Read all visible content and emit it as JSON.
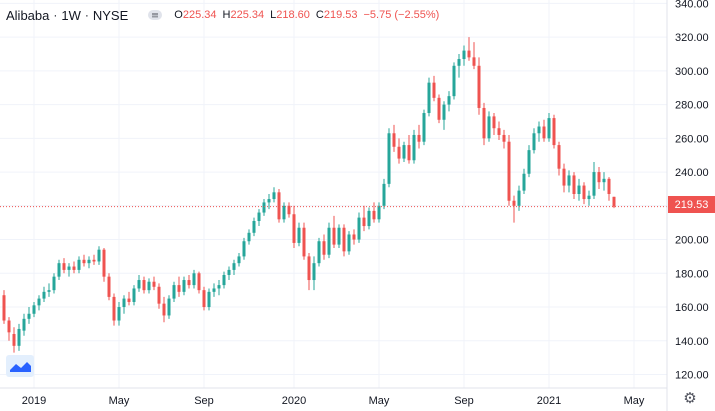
{
  "legend": {
    "symbol": "Alibaba",
    "interval": "1W",
    "exchange": "NYSE",
    "open_label": "O",
    "open": "225.34",
    "high_label": "H",
    "high": "225.34",
    "low_label": "L",
    "low": "218.60",
    "close_label": "C",
    "close": "219.53",
    "change": "−5.75 (−2.55%)"
  },
  "last_price_label": "219.53",
  "colors": {
    "up": "#26a69a",
    "down": "#ef5350",
    "grid": "#f0f3fa",
    "axis_text": "#131722"
  },
  "chart_data": {
    "type": "candlestick",
    "ylim": [
      112,
      342
    ],
    "y_ticks": [
      "120.00",
      "140.00",
      "160.00",
      "180.00",
      "200.00",
      "220.00",
      "240.00",
      "260.00",
      "280.00",
      "300.00",
      "320.00",
      "340.00"
    ],
    "x_ticks": [
      "2019",
      "May",
      "Sep",
      "2020",
      "May",
      "Sep",
      "2021",
      "May"
    ],
    "last_price": 219.53,
    "weeks": [
      {
        "o": 167,
        "h": 170,
        "l": 150,
        "c": 152
      },
      {
        "o": 152,
        "h": 154,
        "l": 140,
        "c": 145
      },
      {
        "o": 144,
        "h": 148,
        "l": 133,
        "c": 137
      },
      {
        "o": 137,
        "h": 150,
        "l": 134,
        "c": 147
      },
      {
        "o": 146,
        "h": 156,
        "l": 143,
        "c": 153
      },
      {
        "o": 153,
        "h": 160,
        "l": 150,
        "c": 156
      },
      {
        "o": 156,
        "h": 163,
        "l": 154,
        "c": 161
      },
      {
        "o": 161,
        "h": 167,
        "l": 158,
        "c": 165
      },
      {
        "o": 165,
        "h": 172,
        "l": 163,
        "c": 169
      },
      {
        "o": 169,
        "h": 174,
        "l": 166,
        "c": 170
      },
      {
        "o": 170,
        "h": 180,
        "l": 168,
        "c": 178
      },
      {
        "o": 178,
        "h": 188,
        "l": 176,
        "c": 186
      },
      {
        "o": 186,
        "h": 189,
        "l": 180,
        "c": 182
      },
      {
        "o": 182,
        "h": 186,
        "l": 178,
        "c": 184
      },
      {
        "o": 184,
        "h": 187,
        "l": 180,
        "c": 182
      },
      {
        "o": 182,
        "h": 190,
        "l": 180,
        "c": 188
      },
      {
        "o": 188,
        "h": 191,
        "l": 184,
        "c": 186
      },
      {
        "o": 186,
        "h": 190,
        "l": 183,
        "c": 188
      },
      {
        "o": 188,
        "h": 191,
        "l": 185,
        "c": 187
      },
      {
        "o": 187,
        "h": 196,
        "l": 185,
        "c": 194
      },
      {
        "o": 194,
        "h": 195,
        "l": 175,
        "c": 178
      },
      {
        "o": 178,
        "h": 180,
        "l": 164,
        "c": 166
      },
      {
        "o": 166,
        "h": 168,
        "l": 149,
        "c": 152
      },
      {
        "o": 152,
        "h": 163,
        "l": 149,
        "c": 160
      },
      {
        "o": 160,
        "h": 167,
        "l": 156,
        "c": 165
      },
      {
        "o": 165,
        "h": 169,
        "l": 161,
        "c": 163
      },
      {
        "o": 163,
        "h": 173,
        "l": 161,
        "c": 171
      },
      {
        "o": 171,
        "h": 179,
        "l": 169,
        "c": 176
      },
      {
        "o": 176,
        "h": 178,
        "l": 168,
        "c": 170
      },
      {
        "o": 170,
        "h": 177,
        "l": 168,
        "c": 175
      },
      {
        "o": 175,
        "h": 178,
        "l": 170,
        "c": 172
      },
      {
        "o": 172,
        "h": 174,
        "l": 159,
        "c": 162
      },
      {
        "o": 162,
        "h": 166,
        "l": 151,
        "c": 155
      },
      {
        "o": 155,
        "h": 167,
        "l": 153,
        "c": 165
      },
      {
        "o": 165,
        "h": 175,
        "l": 163,
        "c": 173
      },
      {
        "o": 173,
        "h": 178,
        "l": 166,
        "c": 169
      },
      {
        "o": 169,
        "h": 178,
        "l": 167,
        "c": 176
      },
      {
        "o": 176,
        "h": 179,
        "l": 171,
        "c": 173
      },
      {
        "o": 173,
        "h": 182,
        "l": 171,
        "c": 180
      },
      {
        "o": 180,
        "h": 181,
        "l": 168,
        "c": 170
      },
      {
        "o": 170,
        "h": 172,
        "l": 158,
        "c": 160
      },
      {
        "o": 160,
        "h": 171,
        "l": 158,
        "c": 169
      },
      {
        "o": 169,
        "h": 174,
        "l": 166,
        "c": 171
      },
      {
        "o": 171,
        "h": 176,
        "l": 167,
        "c": 173
      },
      {
        "o": 173,
        "h": 181,
        "l": 171,
        "c": 179
      },
      {
        "o": 179,
        "h": 184,
        "l": 176,
        "c": 182
      },
      {
        "o": 182,
        "h": 188,
        "l": 179,
        "c": 186
      },
      {
        "o": 186,
        "h": 192,
        "l": 184,
        "c": 190
      },
      {
        "o": 190,
        "h": 201,
        "l": 188,
        "c": 199
      },
      {
        "o": 199,
        "h": 206,
        "l": 197,
        "c": 204
      },
      {
        "o": 204,
        "h": 213,
        "l": 202,
        "c": 211
      },
      {
        "o": 211,
        "h": 218,
        "l": 208,
        "c": 216
      },
      {
        "o": 216,
        "h": 224,
        "l": 214,
        "c": 222
      },
      {
        "o": 222,
        "h": 227,
        "l": 218,
        "c": 224
      },
      {
        "o": 224,
        "h": 231,
        "l": 222,
        "c": 228
      },
      {
        "o": 228,
        "h": 230,
        "l": 210,
        "c": 212
      },
      {
        "o": 212,
        "h": 222,
        "l": 210,
        "c": 220
      },
      {
        "o": 220,
        "h": 222,
        "l": 213,
        "c": 215
      },
      {
        "o": 215,
        "h": 220,
        "l": 195,
        "c": 198
      },
      {
        "o": 198,
        "h": 210,
        "l": 196,
        "c": 207
      },
      {
        "o": 207,
        "h": 210,
        "l": 188,
        "c": 190
      },
      {
        "o": 190,
        "h": 192,
        "l": 170,
        "c": 176
      },
      {
        "o": 176,
        "h": 190,
        "l": 170,
        "c": 186
      },
      {
        "o": 186,
        "h": 201,
        "l": 184,
        "c": 199
      },
      {
        "o": 199,
        "h": 203,
        "l": 188,
        "c": 191
      },
      {
        "o": 191,
        "h": 210,
        "l": 189,
        "c": 207
      },
      {
        "o": 207,
        "h": 214,
        "l": 195,
        "c": 197
      },
      {
        "o": 197,
        "h": 209,
        "l": 195,
        "c": 207
      },
      {
        "o": 207,
        "h": 209,
        "l": 190,
        "c": 193
      },
      {
        "o": 193,
        "h": 205,
        "l": 191,
        "c": 203
      },
      {
        "o": 203,
        "h": 206,
        "l": 197,
        "c": 200
      },
      {
        "o": 200,
        "h": 216,
        "l": 198,
        "c": 213
      },
      {
        "o": 213,
        "h": 220,
        "l": 205,
        "c": 208
      },
      {
        "o": 208,
        "h": 219,
        "l": 206,
        "c": 217
      },
      {
        "o": 217,
        "h": 222,
        "l": 210,
        "c": 212
      },
      {
        "o": 212,
        "h": 222,
        "l": 210,
        "c": 220
      },
      {
        "o": 220,
        "h": 236,
        "l": 218,
        "c": 233
      },
      {
        "o": 233,
        "h": 266,
        "l": 231,
        "c": 263
      },
      {
        "o": 263,
        "h": 268,
        "l": 252,
        "c": 255
      },
      {
        "o": 255,
        "h": 260,
        "l": 245,
        "c": 248
      },
      {
        "o": 248,
        "h": 258,
        "l": 246,
        "c": 256
      },
      {
        "o": 256,
        "h": 262,
        "l": 245,
        "c": 247
      },
      {
        "o": 247,
        "h": 265,
        "l": 245,
        "c": 262
      },
      {
        "o": 262,
        "h": 268,
        "l": 254,
        "c": 258
      },
      {
        "o": 258,
        "h": 277,
        "l": 256,
        "c": 275
      },
      {
        "o": 275,
        "h": 296,
        "l": 273,
        "c": 293
      },
      {
        "o": 293,
        "h": 297,
        "l": 282,
        "c": 284
      },
      {
        "o": 284,
        "h": 286,
        "l": 269,
        "c": 271
      },
      {
        "o": 271,
        "h": 282,
        "l": 265,
        "c": 280
      },
      {
        "o": 280,
        "h": 288,
        "l": 276,
        "c": 285
      },
      {
        "o": 285,
        "h": 305,
        "l": 283,
        "c": 303
      },
      {
        "o": 303,
        "h": 310,
        "l": 296,
        "c": 307
      },
      {
        "o": 307,
        "h": 315,
        "l": 303,
        "c": 312
      },
      {
        "o": 312,
        "h": 320,
        "l": 306,
        "c": 308
      },
      {
        "o": 308,
        "h": 317,
        "l": 301,
        "c": 303
      },
      {
        "o": 303,
        "h": 308,
        "l": 274,
        "c": 278
      },
      {
        "o": 278,
        "h": 281,
        "l": 256,
        "c": 260
      },
      {
        "o": 260,
        "h": 276,
        "l": 258,
        "c": 273
      },
      {
        "o": 273,
        "h": 275,
        "l": 262,
        "c": 266
      },
      {
        "o": 266,
        "h": 270,
        "l": 259,
        "c": 262
      },
      {
        "o": 262,
        "h": 265,
        "l": 254,
        "c": 258
      },
      {
        "o": 258,
        "h": 262,
        "l": 220,
        "c": 223
      },
      {
        "o": 223,
        "h": 226,
        "l": 210,
        "c": 220
      },
      {
        "o": 220,
        "h": 232,
        "l": 217,
        "c": 229
      },
      {
        "o": 229,
        "h": 242,
        "l": 227,
        "c": 239
      },
      {
        "o": 239,
        "h": 256,
        "l": 237,
        "c": 253
      },
      {
        "o": 253,
        "h": 266,
        "l": 251,
        "c": 263
      },
      {
        "o": 263,
        "h": 270,
        "l": 258,
        "c": 267
      },
      {
        "o": 267,
        "h": 271,
        "l": 258,
        "c": 260
      },
      {
        "o": 260,
        "h": 275,
        "l": 258,
        "c": 272
      },
      {
        "o": 272,
        "h": 274,
        "l": 254,
        "c": 256
      },
      {
        "o": 256,
        "h": 258,
        "l": 238,
        "c": 242
      },
      {
        "o": 242,
        "h": 245,
        "l": 228,
        "c": 232
      },
      {
        "o": 232,
        "h": 241,
        "l": 228,
        "c": 238
      },
      {
        "o": 238,
        "h": 240,
        "l": 224,
        "c": 227
      },
      {
        "o": 227,
        "h": 236,
        "l": 223,
        "c": 232
      },
      {
        "o": 232,
        "h": 234,
        "l": 221,
        "c": 224
      },
      {
        "o": 224,
        "h": 229,
        "l": 220,
        "c": 226
      },
      {
        "o": 226,
        "h": 246,
        "l": 224,
        "c": 240
      },
      {
        "o": 240,
        "h": 243,
        "l": 230,
        "c": 234
      },
      {
        "o": 234,
        "h": 240,
        "l": 229,
        "c": 236
      },
      {
        "o": 236,
        "h": 237,
        "l": 223,
        "c": 227
      },
      {
        "o": 225.34,
        "h": 225.34,
        "l": 218.6,
        "c": 219.53
      }
    ]
  }
}
